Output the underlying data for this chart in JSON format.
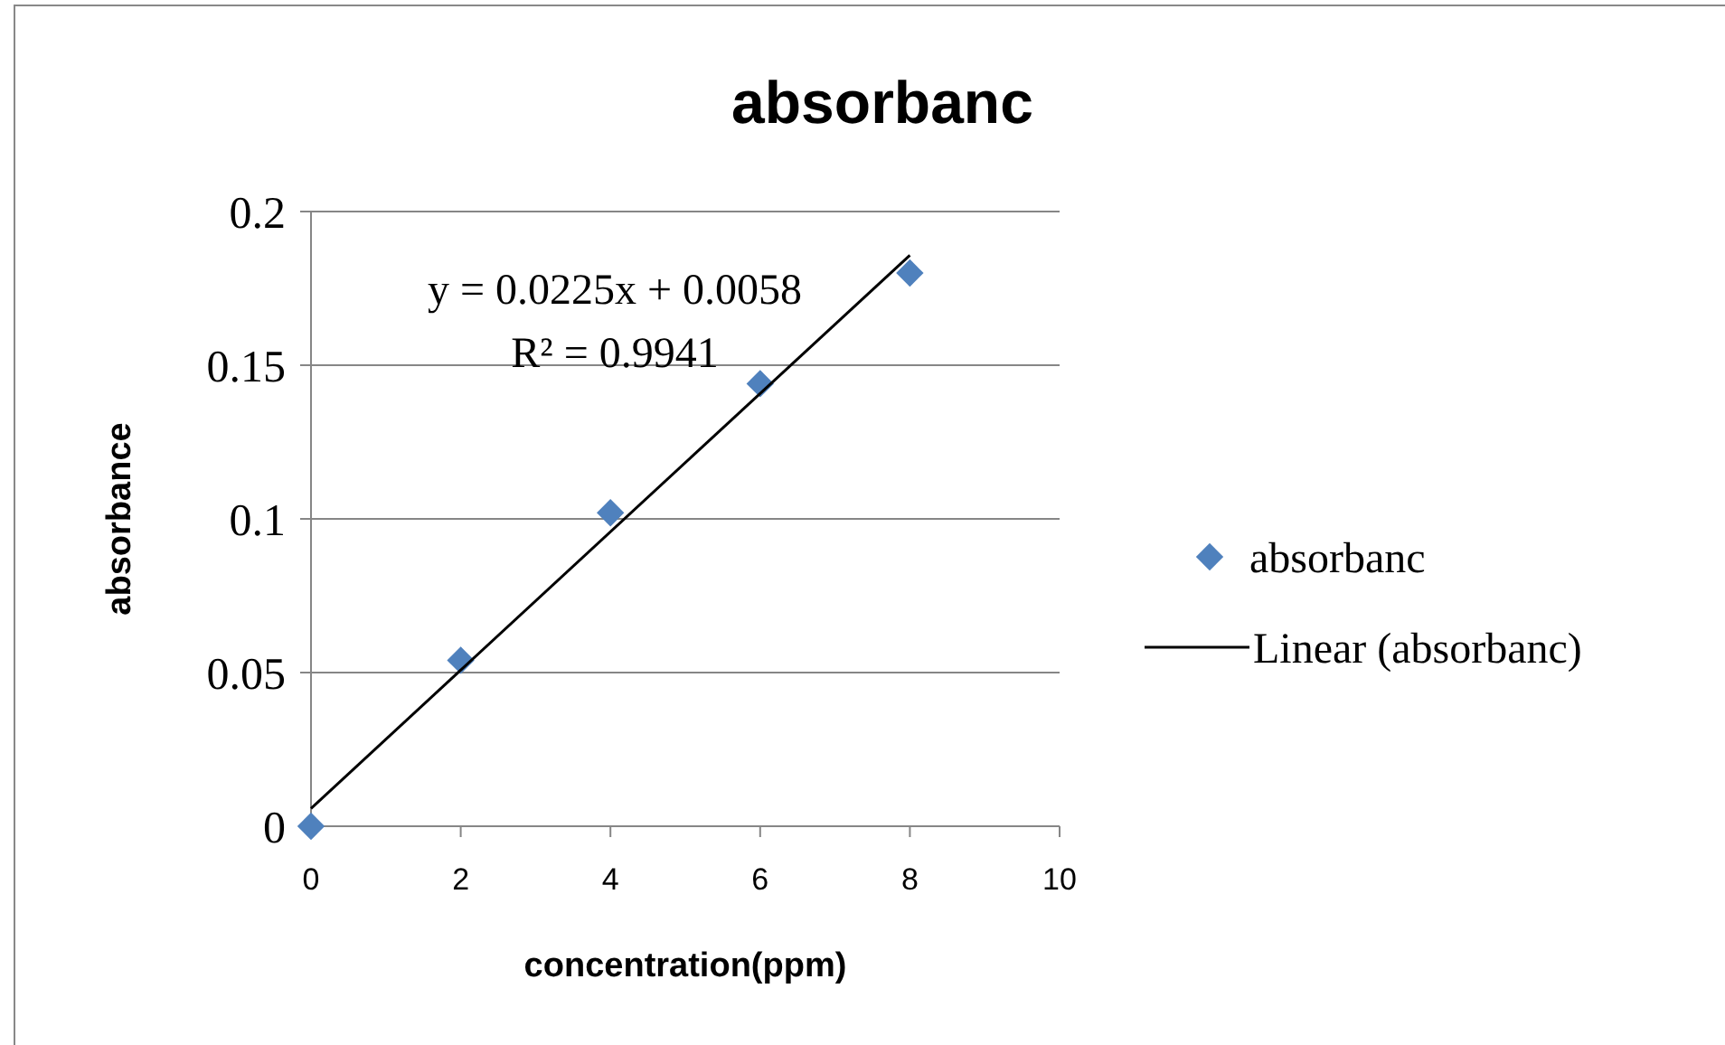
{
  "chart_data": {
    "type": "scatter",
    "title": "absorbanc",
    "xlabel": "concentration(ppm)",
    "ylabel": "absorbance",
    "x": [
      0,
      2,
      4,
      6,
      8
    ],
    "series": [
      {
        "name": "absorbanc",
        "color": "#4f81bd",
        "marker": "diamond",
        "values": [
          0,
          0.054,
          0.102,
          0.144,
          0.18
        ]
      },
      {
        "name": "Linear (absorbanc)",
        "color": "#000000",
        "type": "line",
        "marker": "none",
        "line_style": "solid",
        "x": [
          0,
          8
        ],
        "values": [
          0.0058,
          0.1858
        ]
      }
    ],
    "xlim": [
      0,
      10
    ],
    "xticks": [
      0,
      2,
      4,
      6,
      8,
      10
    ],
    "ylim": [
      0,
      0.2
    ],
    "yticks": [
      0,
      0.05,
      0.1,
      0.15,
      0.2
    ],
    "grid": "y",
    "legend": "right",
    "annotations": [
      "y = 0.0225x + 0.0058",
      "R² = 0.9941"
    ]
  }
}
